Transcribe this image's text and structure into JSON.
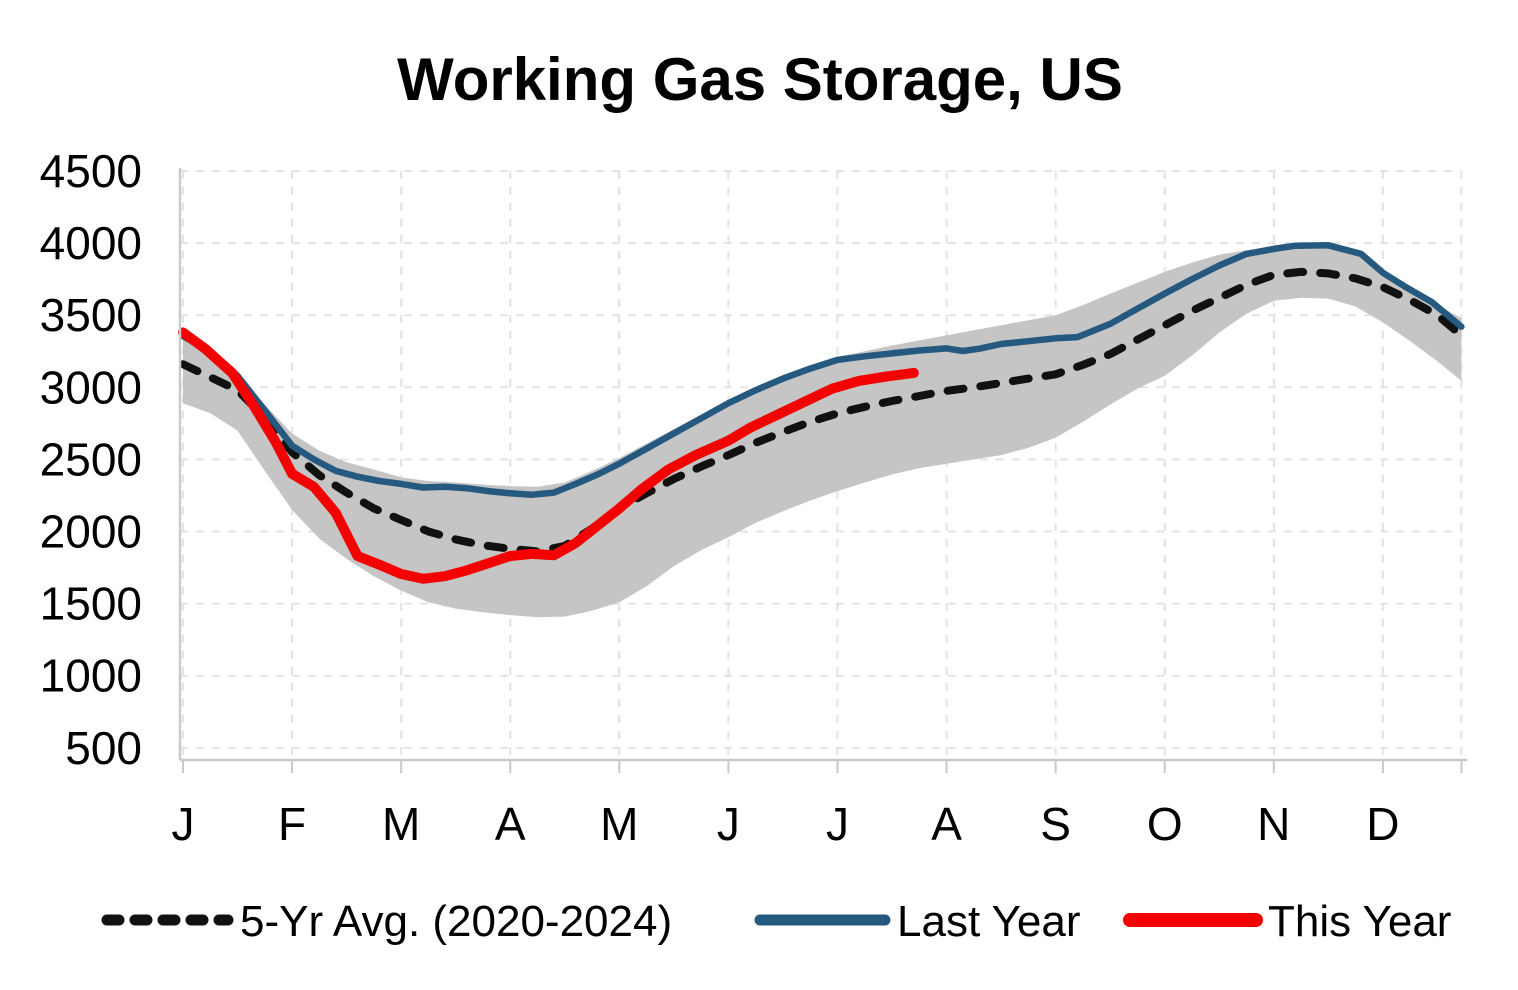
{
  "title": "Working Gas Storage, US",
  "colors": {
    "band": "#C5C5C5",
    "avg_line": "#111111",
    "last_year_line": "#26597F",
    "this_year_line": "#F40000",
    "gridline": "#E3E3E3",
    "axis": "#C9C9C9",
    "text": "#000000",
    "background": "#FFFFFF"
  },
  "legend": {
    "avg": "5-Yr Avg. (2020-2024)",
    "last_year": "Last Year",
    "this_year": "This Year"
  },
  "chart_data": {
    "type": "line",
    "title": "Working Gas Storage, US",
    "xlabel": "",
    "ylabel": "",
    "y_ticks": [
      4500,
      4000,
      3500,
      3000,
      2500,
      2000,
      1500,
      1000,
      500
    ],
    "ylim": [
      500,
      4500
    ],
    "x_labels": [
      "J",
      "F",
      "M",
      "A",
      "M",
      "J",
      "J",
      "A",
      "S",
      "O",
      "N",
      "D"
    ],
    "x_domain": [
      0,
      11.72
    ],
    "month_tick_positions": [
      0,
      1,
      2,
      3,
      4,
      5,
      6,
      7,
      8,
      9,
      10,
      11
    ],
    "grid": "dashed",
    "legend_position": "bottom",
    "band": {
      "name": "5-yr min-max range",
      "top": [
        [
          0,
          3350
        ],
        [
          0.25,
          3240
        ],
        [
          0.5,
          3080
        ],
        [
          0.75,
          2880
        ],
        [
          1,
          2680
        ],
        [
          1.25,
          2560
        ],
        [
          1.5,
          2480
        ],
        [
          1.75,
          2430
        ],
        [
          2,
          2375
        ],
        [
          2.25,
          2350
        ],
        [
          2.5,
          2340
        ],
        [
          2.75,
          2325
        ],
        [
          3,
          2315
        ],
        [
          3.25,
          2310
        ],
        [
          3.5,
          2340
        ],
        [
          3.75,
          2420
        ],
        [
          4,
          2510
        ],
        [
          4.25,
          2610
        ],
        [
          4.5,
          2710
        ],
        [
          4.75,
          2810
        ],
        [
          5,
          2910
        ],
        [
          5.25,
          3000
        ],
        [
          5.5,
          3075
        ],
        [
          5.75,
          3145
        ],
        [
          6,
          3210
        ],
        [
          6.25,
          3250
        ],
        [
          6.5,
          3290
        ],
        [
          6.75,
          3325
        ],
        [
          7,
          3360
        ],
        [
          7.25,
          3395
        ],
        [
          7.5,
          3430
        ],
        [
          7.75,
          3465
        ],
        [
          8,
          3500
        ],
        [
          8.25,
          3570
        ],
        [
          8.5,
          3650
        ],
        [
          8.75,
          3725
        ],
        [
          9,
          3800
        ],
        [
          9.25,
          3865
        ],
        [
          9.5,
          3920
        ],
        [
          9.75,
          3950
        ],
        [
          10,
          3970
        ],
        [
          10.3,
          3990
        ],
        [
          10.6,
          3975
        ],
        [
          10.8,
          3930
        ],
        [
          11,
          3800
        ],
        [
          11.25,
          3675
        ],
        [
          11.5,
          3570
        ],
        [
          11.72,
          3480
        ]
      ],
      "bottom": [
        [
          0,
          2890
        ],
        [
          0.25,
          2820
        ],
        [
          0.5,
          2700
        ],
        [
          0.75,
          2420
        ],
        [
          1,
          2150
        ],
        [
          1.25,
          1950
        ],
        [
          1.5,
          1810
        ],
        [
          1.75,
          1690
        ],
        [
          2,
          1590
        ],
        [
          2.25,
          1510
        ],
        [
          2.5,
          1465
        ],
        [
          2.75,
          1440
        ],
        [
          3,
          1420
        ],
        [
          3.25,
          1405
        ],
        [
          3.5,
          1410
        ],
        [
          3.75,
          1450
        ],
        [
          4,
          1510
        ],
        [
          4.25,
          1620
        ],
        [
          4.5,
          1760
        ],
        [
          4.75,
          1870
        ],
        [
          5,
          1960
        ],
        [
          5.25,
          2060
        ],
        [
          5.5,
          2140
        ],
        [
          5.75,
          2215
        ],
        [
          6,
          2280
        ],
        [
          6.25,
          2340
        ],
        [
          6.5,
          2395
        ],
        [
          6.75,
          2440
        ],
        [
          7,
          2470
        ],
        [
          7.25,
          2500
        ],
        [
          7.5,
          2530
        ],
        [
          7.75,
          2580
        ],
        [
          8,
          2650
        ],
        [
          8.25,
          2760
        ],
        [
          8.5,
          2880
        ],
        [
          8.75,
          2990
        ],
        [
          9,
          3080
        ],
        [
          9.25,
          3220
        ],
        [
          9.5,
          3380
        ],
        [
          9.75,
          3510
        ],
        [
          10,
          3600
        ],
        [
          10.25,
          3620
        ],
        [
          10.5,
          3615
        ],
        [
          10.75,
          3560
        ],
        [
          11,
          3450
        ],
        [
          11.25,
          3320
        ],
        [
          11.5,
          3180
        ],
        [
          11.72,
          3045
        ]
      ]
    },
    "series": [
      {
        "name": "5-Yr Avg. (2020-2024)",
        "style": "dashed",
        "color": "#111111",
        "points": [
          [
            0,
            3160
          ],
          [
            0.25,
            3070
          ],
          [
            0.5,
            2980
          ],
          [
            0.75,
            2790
          ],
          [
            1,
            2550
          ],
          [
            1.25,
            2390
          ],
          [
            1.5,
            2270
          ],
          [
            1.75,
            2160
          ],
          [
            2,
            2080
          ],
          [
            2.25,
            2000
          ],
          [
            2.5,
            1945
          ],
          [
            2.75,
            1905
          ],
          [
            3,
            1880
          ],
          [
            3.25,
            1862
          ],
          [
            3.5,
            1900
          ],
          [
            3.75,
            2020
          ],
          [
            4,
            2160
          ],
          [
            4.25,
            2265
          ],
          [
            4.5,
            2365
          ],
          [
            4.75,
            2450
          ],
          [
            5,
            2530
          ],
          [
            5.25,
            2615
          ],
          [
            5.5,
            2690
          ],
          [
            5.75,
            2760
          ],
          [
            6,
            2820
          ],
          [
            6.25,
            2865
          ],
          [
            6.5,
            2905
          ],
          [
            6.75,
            2940
          ],
          [
            7,
            2975
          ],
          [
            7.25,
            3000
          ],
          [
            7.5,
            3030
          ],
          [
            7.75,
            3060
          ],
          [
            8,
            3090
          ],
          [
            8.25,
            3155
          ],
          [
            8.5,
            3230
          ],
          [
            8.75,
            3330
          ],
          [
            9,
            3430
          ],
          [
            9.25,
            3530
          ],
          [
            9.5,
            3620
          ],
          [
            9.75,
            3710
          ],
          [
            10,
            3780
          ],
          [
            10.25,
            3800
          ],
          [
            10.5,
            3790
          ],
          [
            10.75,
            3755
          ],
          [
            11,
            3695
          ],
          [
            11.25,
            3605
          ],
          [
            11.5,
            3500
          ],
          [
            11.72,
            3360
          ]
        ]
      },
      {
        "name": "Last Year",
        "style": "solid",
        "color": "#26597F",
        "points": [
          [
            0,
            3355
          ],
          [
            0.25,
            3250
          ],
          [
            0.5,
            3080
          ],
          [
            0.75,
            2840
          ],
          [
            1,
            2595
          ],
          [
            1.2,
            2500
          ],
          [
            1.4,
            2420
          ],
          [
            1.6,
            2380
          ],
          [
            1.8,
            2350
          ],
          [
            2,
            2330
          ],
          [
            2.2,
            2305
          ],
          [
            2.4,
            2310
          ],
          [
            2.6,
            2300
          ],
          [
            2.8,
            2280
          ],
          [
            3,
            2265
          ],
          [
            3.2,
            2255
          ],
          [
            3.4,
            2270
          ],
          [
            3.6,
            2330
          ],
          [
            3.8,
            2395
          ],
          [
            4,
            2470
          ],
          [
            4.25,
            2575
          ],
          [
            4.5,
            2680
          ],
          [
            4.75,
            2785
          ],
          [
            5,
            2890
          ],
          [
            5.25,
            2980
          ],
          [
            5.5,
            3060
          ],
          [
            5.75,
            3130
          ],
          [
            6,
            3190
          ],
          [
            6.25,
            3215
          ],
          [
            6.5,
            3235
          ],
          [
            6.75,
            3255
          ],
          [
            7,
            3270
          ],
          [
            7.15,
            3252
          ],
          [
            7.3,
            3268
          ],
          [
            7.5,
            3300
          ],
          [
            7.75,
            3320
          ],
          [
            8,
            3340
          ],
          [
            8.2,
            3348
          ],
          [
            8.5,
            3440
          ],
          [
            8.75,
            3545
          ],
          [
            9,
            3650
          ],
          [
            9.25,
            3750
          ],
          [
            9.5,
            3845
          ],
          [
            9.75,
            3925
          ],
          [
            10,
            3960
          ],
          [
            10.2,
            3982
          ],
          [
            10.5,
            3985
          ],
          [
            10.8,
            3925
          ],
          [
            11,
            3795
          ],
          [
            11.2,
            3700
          ],
          [
            11.45,
            3590
          ],
          [
            11.72,
            3420
          ]
        ]
      },
      {
        "name": "This Year",
        "style": "solid",
        "color": "#F40000",
        "points": [
          [
            0,
            3380
          ],
          [
            0.2,
            3270
          ],
          [
            0.45,
            3100
          ],
          [
            0.65,
            2870
          ],
          [
            0.85,
            2620
          ],
          [
            1,
            2400
          ],
          [
            1.2,
            2310
          ],
          [
            1.4,
            2130
          ],
          [
            1.6,
            1830
          ],
          [
            1.8,
            1770
          ],
          [
            2,
            1705
          ],
          [
            2.2,
            1672
          ],
          [
            2.4,
            1690
          ],
          [
            2.6,
            1730
          ],
          [
            2.8,
            1780
          ],
          [
            3,
            1830
          ],
          [
            3.2,
            1845
          ],
          [
            3.4,
            1835
          ],
          [
            3.6,
            1920
          ],
          [
            3.8,
            2040
          ],
          [
            4,
            2160
          ],
          [
            4.2,
            2290
          ],
          [
            4.45,
            2430
          ],
          [
            4.7,
            2530
          ],
          [
            5,
            2630
          ],
          [
            5.2,
            2720
          ],
          [
            5.45,
            2810
          ],
          [
            5.7,
            2900
          ],
          [
            5.95,
            2990
          ],
          [
            6.2,
            3045
          ],
          [
            6.45,
            3075
          ],
          [
            6.7,
            3100
          ]
        ]
      }
    ]
  }
}
